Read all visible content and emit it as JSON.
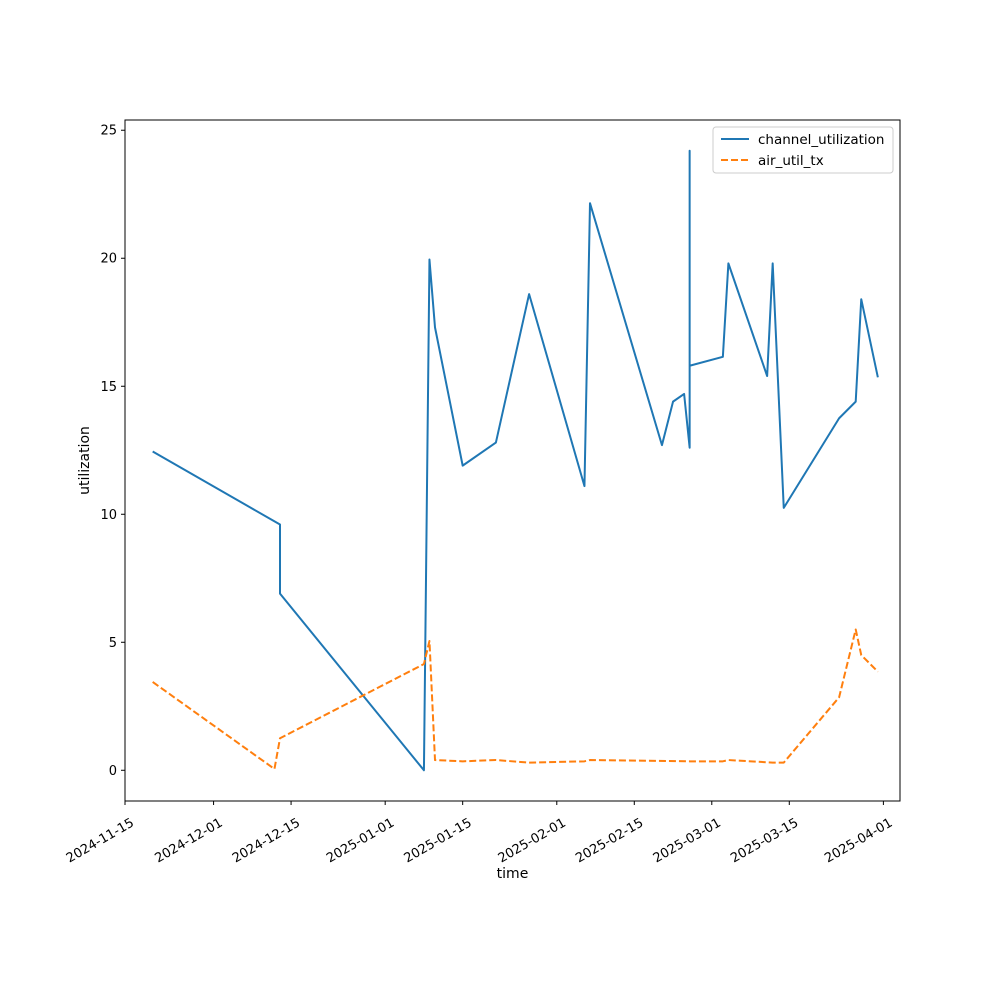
{
  "chart_data": {
    "type": "line",
    "title": "",
    "xlabel": "time",
    "ylabel": "utilization",
    "x_type": "date",
    "xlim": [
      "2024-11-15",
      "2025-04-04"
    ],
    "ylim": [
      -1.2,
      25.4
    ],
    "x_ticks": [
      "2024-11-15",
      "2024-12-01",
      "2024-12-15",
      "2025-01-01",
      "2025-01-15",
      "2025-02-01",
      "2025-02-15",
      "2025-03-01",
      "2025-03-15",
      "2025-04-01"
    ],
    "y_ticks": [
      0,
      5,
      10,
      15,
      20,
      25
    ],
    "grid": false,
    "legend_position": "top-right",
    "series": [
      {
        "name": "channel_utilization",
        "color": "#1f77b4",
        "dash": "solid",
        "points": [
          [
            "2024-11-20",
            12.45
          ],
          [
            "2024-12-13",
            9.6
          ],
          [
            "2024-12-13",
            6.9
          ],
          [
            "2025-01-08",
            0.0
          ],
          [
            "2025-01-09",
            19.95
          ],
          [
            "2025-01-10",
            17.3
          ],
          [
            "2025-01-15",
            11.9
          ],
          [
            "2025-01-21",
            12.8
          ],
          [
            "2025-01-27",
            18.6
          ],
          [
            "2025-02-06",
            11.1
          ],
          [
            "2025-02-07",
            22.15
          ],
          [
            "2025-02-20",
            12.7
          ],
          [
            "2025-02-22",
            14.4
          ],
          [
            "2025-02-24",
            14.7
          ],
          [
            "2025-02-25",
            12.6
          ],
          [
            "2025-02-25",
            24.2
          ],
          [
            "2025-02-25",
            15.8
          ],
          [
            "2025-03-03",
            16.15
          ],
          [
            "2025-03-04",
            19.8
          ],
          [
            "2025-03-11",
            15.4
          ],
          [
            "2025-03-12",
            19.8
          ],
          [
            "2025-03-14",
            10.25
          ],
          [
            "2025-03-24",
            13.75
          ],
          [
            "2025-03-27",
            14.4
          ],
          [
            "2025-03-28",
            18.4
          ],
          [
            "2025-03-31",
            15.35
          ]
        ]
      },
      {
        "name": "air_util_tx",
        "color": "#ff7f0e",
        "dash": "dashed",
        "points": [
          [
            "2024-11-20",
            3.45
          ],
          [
            "2024-12-12",
            0.05
          ],
          [
            "2024-12-13",
            1.25
          ],
          [
            "2025-01-08",
            4.15
          ],
          [
            "2025-01-09",
            5.05
          ],
          [
            "2025-01-10",
            0.4
          ],
          [
            "2025-01-15",
            0.35
          ],
          [
            "2025-01-21",
            0.4
          ],
          [
            "2025-01-27",
            0.3
          ],
          [
            "2025-02-06",
            0.35
          ],
          [
            "2025-02-07",
            0.4
          ],
          [
            "2025-02-25",
            0.35
          ],
          [
            "2025-03-03",
            0.35
          ],
          [
            "2025-03-04",
            0.4
          ],
          [
            "2025-03-12",
            0.3
          ],
          [
            "2025-03-14",
            0.3
          ],
          [
            "2025-03-24",
            2.85
          ],
          [
            "2025-03-27",
            5.5
          ],
          [
            "2025-03-28",
            4.5
          ],
          [
            "2025-03-31",
            3.85
          ]
        ]
      }
    ]
  }
}
